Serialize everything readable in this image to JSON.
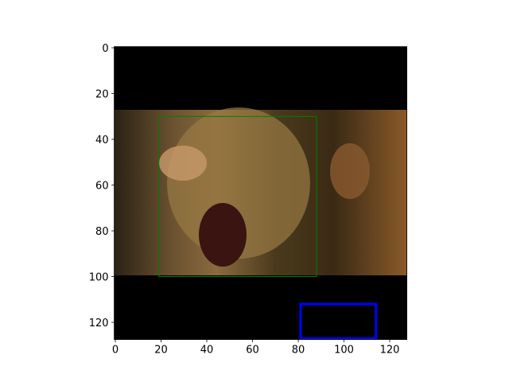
{
  "chart_data": {
    "type": "image",
    "xlim": [
      -0.5,
      127.5
    ],
    "ylim": [
      127.5,
      -0.5
    ],
    "xticks": [
      0,
      20,
      40,
      60,
      80,
      100,
      120
    ],
    "yticks": [
      0,
      20,
      40,
      60,
      80,
      100,
      120
    ],
    "boxes": [
      {
        "color": "#008000",
        "x": [
          19,
          88
        ],
        "y": [
          30,
          100
        ]
      },
      {
        "color": "#0000ff",
        "x": [
          81,
          114
        ],
        "y": [
          112,
          127
        ]
      }
    ]
  }
}
